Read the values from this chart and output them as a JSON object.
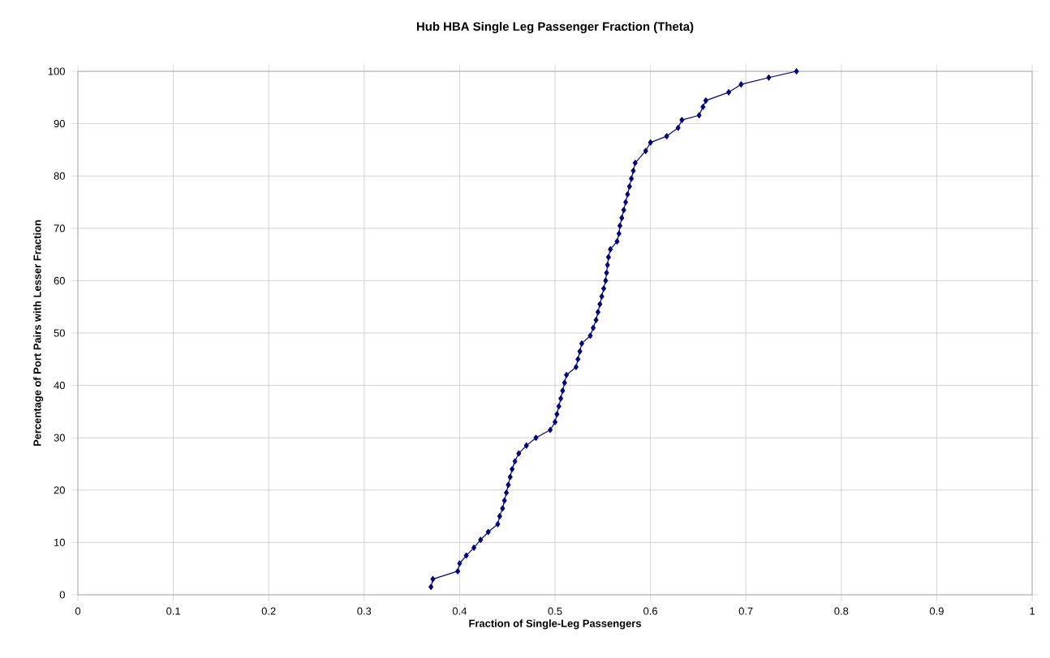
{
  "chart_data": {
    "type": "line",
    "title": "Hub HBA Single Leg Passenger Fraction (Theta)",
    "xlabel": "Fraction of Single-Leg Passengers",
    "ylabel": "Percentage of Port Pairs with Lesser Fraction",
    "x": [
      0.37,
      0.372,
      0.398,
      0.4,
      0.407,
      0.415,
      0.422,
      0.43,
      0.44,
      0.442,
      0.445,
      0.447,
      0.449,
      0.451,
      0.453,
      0.455,
      0.458,
      0.462,
      0.47,
      0.48,
      0.495,
      0.5,
      0.502,
      0.504,
      0.506,
      0.508,
      0.51,
      0.512,
      0.522,
      0.524,
      0.526,
      0.528,
      0.537,
      0.54,
      0.543,
      0.545,
      0.547,
      0.549,
      0.551,
      0.553,
      0.554,
      0.555,
      0.556,
      0.558,
      0.565,
      0.567,
      0.568,
      0.57,
      0.572,
      0.574,
      0.576,
      0.578,
      0.58,
      0.582,
      0.584,
      0.595,
      0.6,
      0.617,
      0.629,
      0.633,
      0.651,
      0.655,
      0.658,
      0.682,
      0.695,
      0.724,
      0.753
    ],
    "series": [
      {
        "color": "#000080",
        "values": [
          1.5,
          3,
          4.5,
          6,
          7.5,
          9,
          10.5,
          12,
          13.5,
          15,
          16.5,
          18,
          19.5,
          21,
          22.5,
          24,
          25.5,
          27,
          28.5,
          30,
          31.5,
          33,
          34.5,
          36,
          37.5,
          39,
          40.5,
          42,
          43.5,
          45,
          46.5,
          48,
          49.5,
          51,
          52.5,
          54,
          55.5,
          57,
          58.5,
          60,
          61.5,
          63,
          64.5,
          66,
          67.5,
          69,
          70.5,
          72,
          73.5,
          75,
          76.5,
          78,
          79.5,
          81,
          82.5,
          84.8,
          86.4,
          87.6,
          89.2,
          90.7,
          91.6,
          93.2,
          94.4,
          96,
          97.5,
          98.8,
          100
        ]
      }
    ],
    "xlim": [
      0,
      1
    ],
    "ylim": [
      0,
      100
    ],
    "xticks": [
      0,
      0.1,
      0.2,
      0.3,
      0.4,
      0.5,
      0.6,
      0.7,
      0.8,
      0.9,
      1
    ],
    "yticks": [
      0,
      10,
      20,
      30,
      40,
      50,
      60,
      70,
      80,
      90,
      100
    ],
    "grid": true,
    "marker": "diamond",
    "line_style": "solid"
  }
}
